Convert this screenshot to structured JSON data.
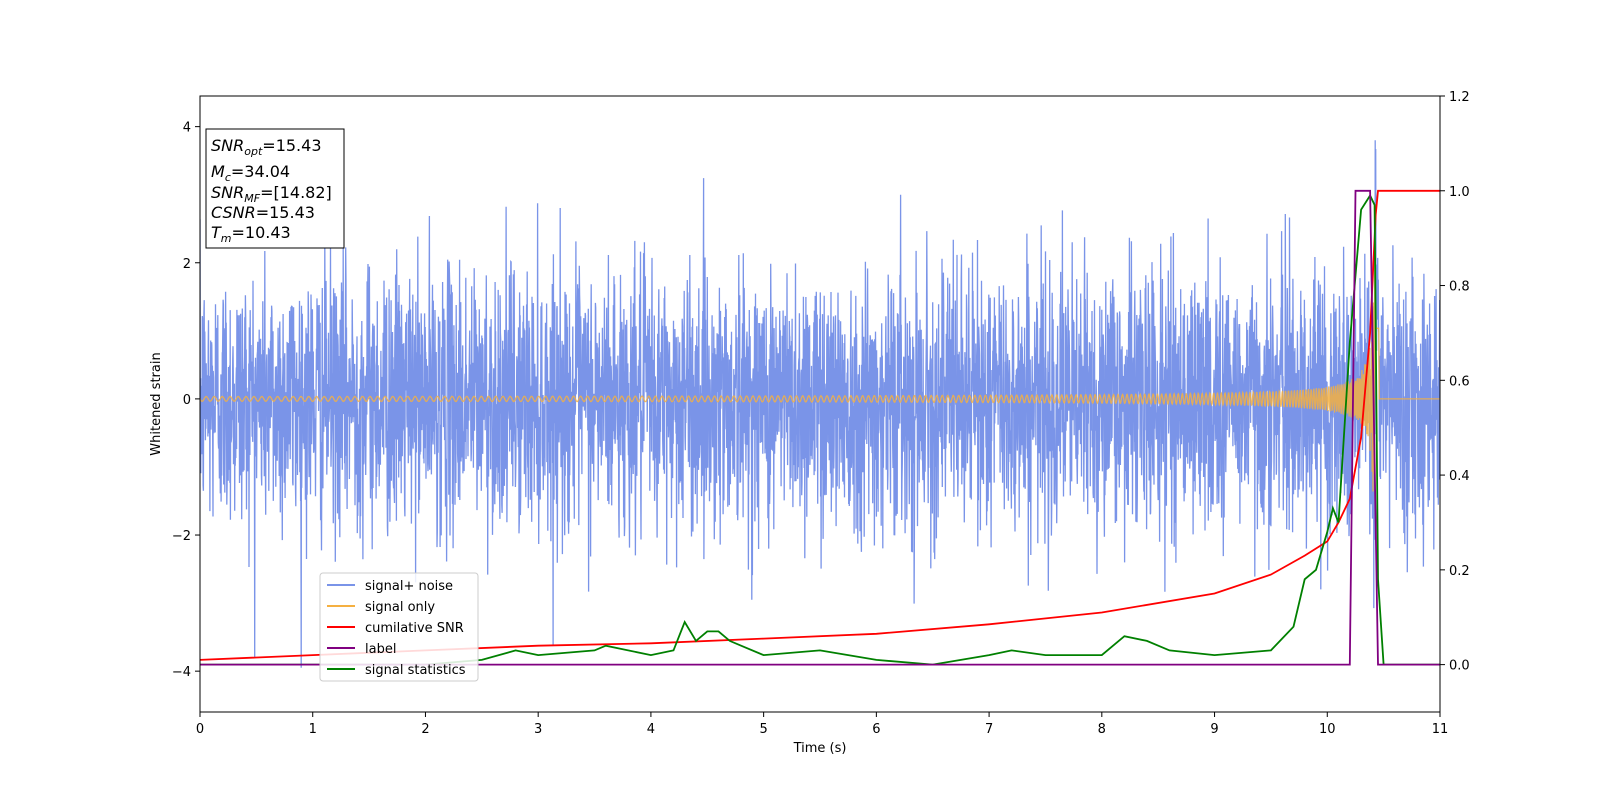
{
  "chart_data": {
    "type": "line",
    "xlabel": "Time (s)",
    "ylabel_left": "Whitened strain",
    "ylabel_right": "",
    "xlim": [
      0,
      11
    ],
    "ylim_left": [
      -4.6,
      4.45
    ],
    "ylim_right": [
      -0.1,
      1.2
    ],
    "x_ticks": [
      "0",
      "1",
      "2",
      "3",
      "4",
      "5",
      "6",
      "7",
      "8",
      "9",
      "10",
      "11"
    ],
    "y_left_ticks": [
      "−4",
      "−2",
      "0",
      "2",
      "4"
    ],
    "y_right_ticks": [
      "0.0",
      "0.2",
      "0.4",
      "0.6",
      "0.8",
      "1.0",
      "1.2"
    ],
    "legend_position": "lower-left",
    "grid": false,
    "annotation": {
      "lines": [
        {
          "main": "SNR",
          "sub": "opt",
          "rest": "=15.43"
        },
        {
          "main": "M",
          "sub": "c",
          "rest": "=34.04"
        },
        {
          "main": "SNR",
          "sub": "MF",
          "rest": "=[14.82]"
        },
        {
          "main": "CSNR",
          "sub": "",
          "rest": "=15.43"
        },
        {
          "main": "T",
          "sub": "m",
          "rest": "=10.43"
        }
      ]
    },
    "series": [
      {
        "name": "signal+ noise",
        "axis": "left",
        "color": "#7a94e8",
        "description_values": {
          "noise_std": 0.95,
          "max": 3.8,
          "min": -4.2
        }
      },
      {
        "name": "signal only",
        "axis": "left",
        "color": "#f5b041",
        "chirp": {
          "merger_time": 10.43,
          "peak_amplitude": 3.6,
          "start_amplitude": 0.02
        }
      },
      {
        "name": "cumilative SNR",
        "axis": "right",
        "color": "#ff0000",
        "x": [
          0,
          1,
          2,
          3,
          4,
          5,
          6,
          7,
          8,
          9,
          9.5,
          9.8,
          10.0,
          10.1,
          10.2,
          10.3,
          10.38,
          10.43,
          10.45,
          11
        ],
        "y": [
          0.01,
          0.02,
          0.03,
          0.04,
          0.045,
          0.055,
          0.065,
          0.085,
          0.11,
          0.15,
          0.19,
          0.23,
          0.26,
          0.3,
          0.35,
          0.48,
          0.7,
          0.95,
          1.0,
          1.0
        ]
      },
      {
        "name": "label",
        "axis": "right",
        "color": "#800080",
        "x": [
          0,
          10.2,
          10.25,
          10.38,
          10.45,
          11
        ],
        "y": [
          0.0,
          0.0,
          1.0,
          1.0,
          0.0,
          0.0
        ]
      },
      {
        "name": "signal statistics",
        "axis": "right",
        "color": "#008000",
        "x": [
          0,
          1,
          2,
          2.5,
          2.8,
          3,
          3.5,
          3.6,
          4,
          4.2,
          4.3,
          4.4,
          4.5,
          4.6,
          4.7,
          4.8,
          5,
          5.5,
          6,
          6.5,
          7,
          7.2,
          7.5,
          8,
          8.2,
          8.4,
          8.6,
          9,
          9.5,
          9.7,
          9.8,
          9.9,
          10,
          10.05,
          10.1,
          10.2,
          10.3,
          10.38,
          10.42,
          10.45,
          10.5,
          11
        ],
        "y": [
          0.0,
          0.0,
          0.0,
          0.01,
          0.03,
          0.02,
          0.03,
          0.04,
          0.02,
          0.03,
          0.09,
          0.05,
          0.07,
          0.07,
          0.05,
          0.04,
          0.02,
          0.03,
          0.01,
          0.0,
          0.02,
          0.03,
          0.02,
          0.02,
          0.06,
          0.05,
          0.03,
          0.02,
          0.03,
          0.08,
          0.18,
          0.2,
          0.28,
          0.33,
          0.3,
          0.68,
          0.96,
          0.99,
          0.97,
          0.18,
          0.0,
          0.0
        ]
      }
    ]
  }
}
